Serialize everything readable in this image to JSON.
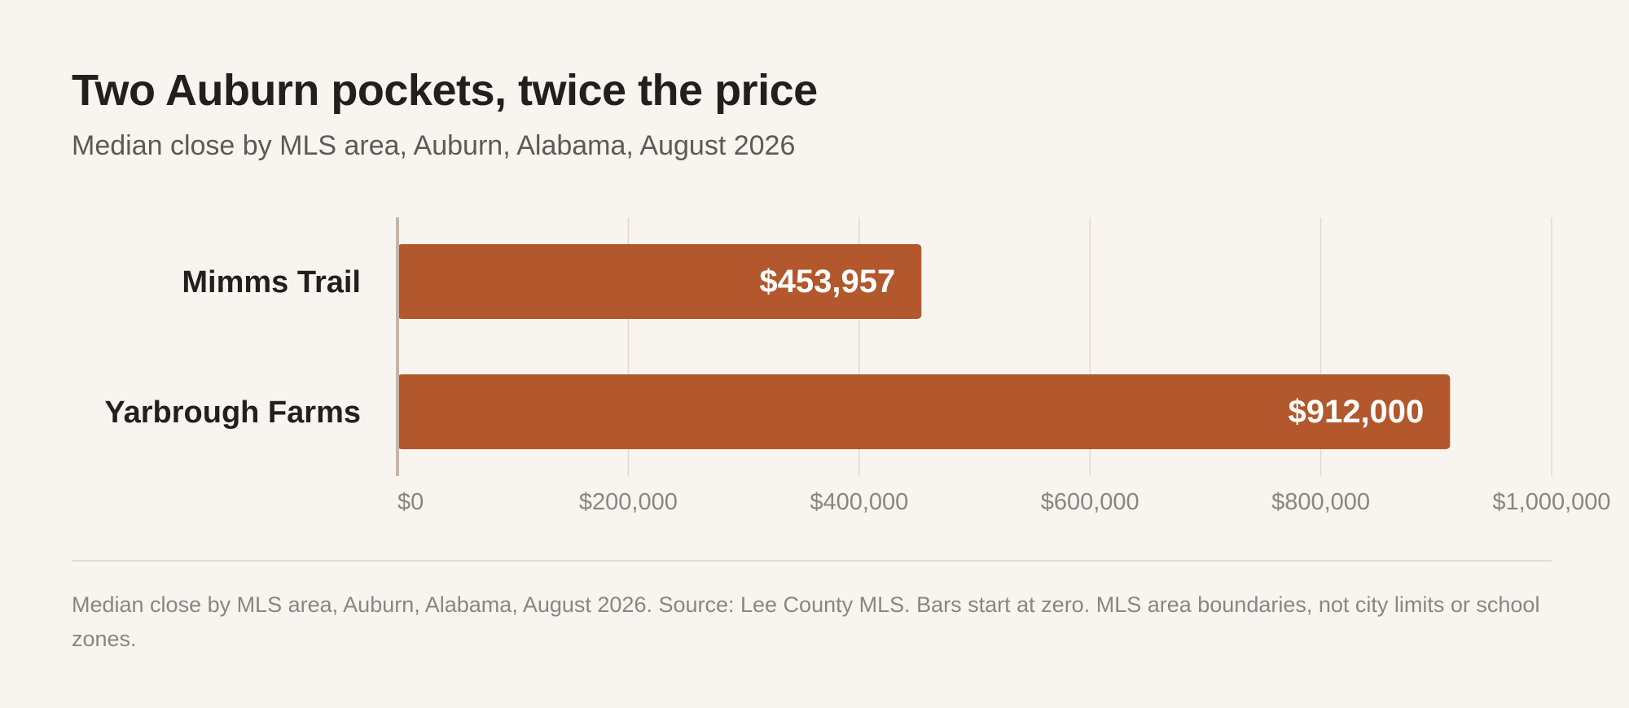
{
  "title": "Two Auburn pockets, twice the price",
  "subtitle": "Median close by MLS area, Auburn, Alabama, August 2026",
  "footnote": "Median close by MLS area, Auburn, Alabama, August 2026. Source: Lee County MLS. Bars start at zero. MLS area boundaries, not city limits or school zones.",
  "colors": {
    "bar": "#b3572d",
    "bar_label": "#ffffff",
    "category_label": "#231f1c",
    "tick_label": "#8a8580",
    "grid": "#e0d9d3",
    "baseline": "#c4b5aa"
  },
  "chart_data": {
    "type": "bar",
    "orientation": "horizontal",
    "categories": [
      "Mimms Trail",
      "Yarbrough Farms"
    ],
    "values": [
      453957,
      912000
    ],
    "value_labels": [
      "$453,957",
      "$912,000"
    ],
    "xlim": [
      0,
      1000000
    ],
    "xticks": [
      0,
      200000,
      400000,
      600000,
      800000,
      1000000
    ],
    "xtick_labels": [
      "$0",
      "$200,000",
      "$400,000",
      "$600,000",
      "$800,000",
      "$1,000,000"
    ],
    "grid": true,
    "legend": false
  }
}
